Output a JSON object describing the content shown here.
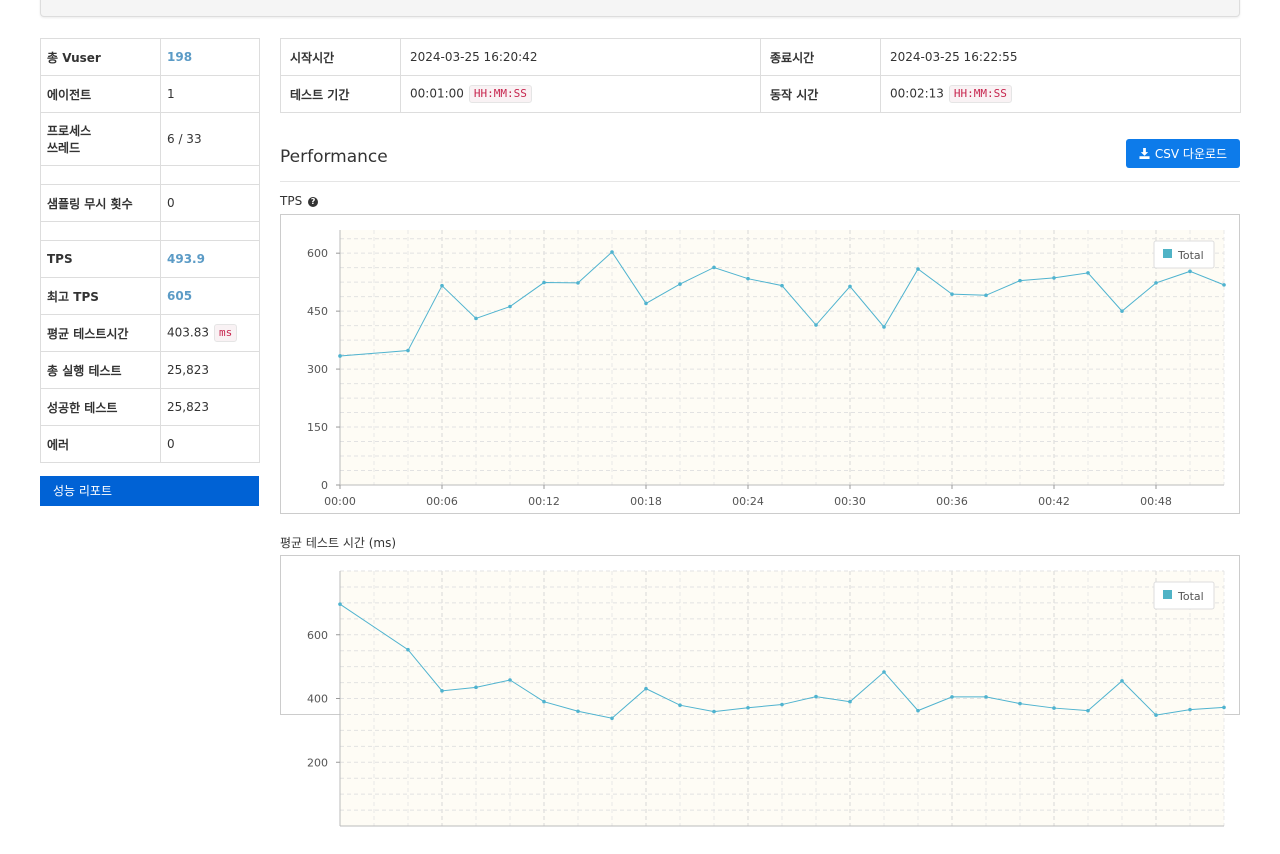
{
  "summary": {
    "vuser_label": "총 Vuser",
    "vuser_value": "198",
    "agent_label": "에이전트",
    "agent_value": "1",
    "process_label_1": "프로세스",
    "process_label_2": "쓰레드",
    "process_value": "6 / 33",
    "sampling_label": "샘플링 무시 횟수",
    "sampling_value": "0",
    "tps_label": "TPS",
    "tps_value": "493.9",
    "peak_tps_label": "최고 TPS",
    "peak_tps_value": "605",
    "avg_test_time_label": "평균 테스트시간",
    "avg_test_time_value": "403.83",
    "avg_test_time_unit": "ms",
    "total_tests_label": "총 실행 테스트",
    "total_tests_value": "25,823",
    "success_tests_label": "성공한 테스트",
    "success_tests_value": "25,823",
    "error_label": "에러",
    "error_value": "0"
  },
  "report_button": "성능 리포트",
  "info": {
    "start_label": "시작시간",
    "start_value": "2024-03-25 16:20:42",
    "end_label": "종료시간",
    "end_value": "2024-03-25 16:22:55",
    "duration_label": "테스트 기간",
    "duration_value": "00:01:00",
    "duration_format": "HH:MM:SS",
    "run_label": "동작 시간",
    "run_value": "00:02:13",
    "run_format": "HH:MM:SS"
  },
  "performance_title": "Performance",
  "csv_button": "CSV 다운로드",
  "icons": {
    "csv": "download-icon",
    "tps_help": "question-circle-icon"
  },
  "colors": {
    "series": "#4fb3cf",
    "legend_swatch": "#4fb3c6",
    "plot_bg": "#fefcf5",
    "primary": "#0062d5",
    "csv": "#0d7bea",
    "link": "#5b9bc6"
  },
  "chart_data": [
    {
      "type": "line",
      "title": "TPS",
      "legend": "top-right",
      "grid": true,
      "ylim": [
        0,
        660
      ],
      "yticks": [
        "0",
        "150",
        "300",
        "450",
        "600"
      ],
      "ytick_values": [
        0,
        150,
        300,
        450,
        600
      ],
      "xticks": [
        "00:00",
        "00:06",
        "00:12",
        "00:18",
        "00:24",
        "00:30",
        "00:36",
        "00:42",
        "00:48"
      ],
      "xtick_values": [
        0,
        6,
        12,
        18,
        24,
        30,
        36,
        42,
        48
      ],
      "xlim": [
        0,
        52
      ],
      "series": [
        {
          "name": "Total",
          "x": [
            0,
            4,
            6,
            8,
            10,
            12,
            14,
            16,
            18,
            20,
            22,
            24,
            26,
            28,
            30,
            32,
            34,
            36,
            38,
            40,
            42,
            44,
            46,
            48,
            50,
            52
          ],
          "y": [
            334,
            348,
            516,
            431,
            462,
            524,
            523,
            603,
            470,
            520,
            563,
            534,
            516,
            414,
            514,
            409,
            559,
            494,
            491,
            529,
            536,
            549,
            450,
            523,
            553,
            518
          ]
        }
      ]
    },
    {
      "type": "line",
      "title": "평균 테스트 시간 (ms)",
      "legend": "top-right",
      "grid": true,
      "ylim": [
        0,
        800
      ],
      "yticks": [
        "200",
        "400",
        "600"
      ],
      "ytick_values": [
        200,
        400,
        600
      ],
      "xlim": [
        0,
        52
      ],
      "series": [
        {
          "name": "Total",
          "x": [
            0,
            4,
            6,
            8,
            10,
            12,
            14,
            16,
            18,
            20,
            22,
            24,
            26,
            28,
            30,
            32,
            34,
            36,
            38,
            40,
            42,
            44,
            46,
            48,
            50,
            52
          ],
          "y": [
            696,
            553,
            424,
            435,
            458,
            390,
            360,
            338,
            431,
            379,
            359,
            371,
            381,
            406,
            390,
            483,
            362,
            405,
            405,
            384,
            370,
            362,
            455,
            348,
            365,
            372
          ]
        }
      ]
    }
  ]
}
